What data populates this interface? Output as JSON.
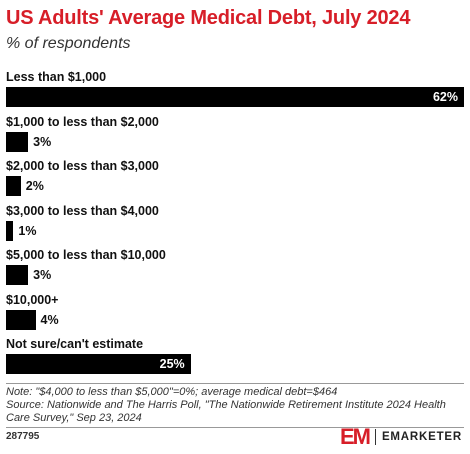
{
  "header": {
    "title": "US Adults' Average Medical Debt, July 2024",
    "subtitle": "% of respondents"
  },
  "chart_data": {
    "type": "bar",
    "orientation": "horizontal",
    "categories": [
      "Less than $1,000",
      "$1,000 to less than $2,000",
      "$2,000 to less than $3,000",
      "$3,000 to less than $4,000",
      "$5,000 to less than $10,000",
      "$10,000+",
      "Not sure/can't estimate"
    ],
    "values": [
      62,
      3,
      2,
      1,
      3,
      4,
      25
    ],
    "value_labels": [
      "62%",
      "3%",
      "2%",
      "1%",
      "3%",
      "4%",
      "25%"
    ],
    "xlim": [
      0,
      62
    ],
    "unit": "%",
    "bar_color": "#000000",
    "grid": false,
    "legend": "none"
  },
  "footer": {
    "note": "Note: \"$4,000 to less than $5,000\"=0%; average medical debt=$464",
    "source": "Source: Nationwide and The Harris Poll, \"The Nationwide Retirement Institute 2024 Health Care Survey,\" Sep 23, 2024",
    "code": "287795"
  },
  "brand": {
    "logo_mark": "EM",
    "logo_text": "EMARKETER",
    "accent": "#d71e28"
  }
}
